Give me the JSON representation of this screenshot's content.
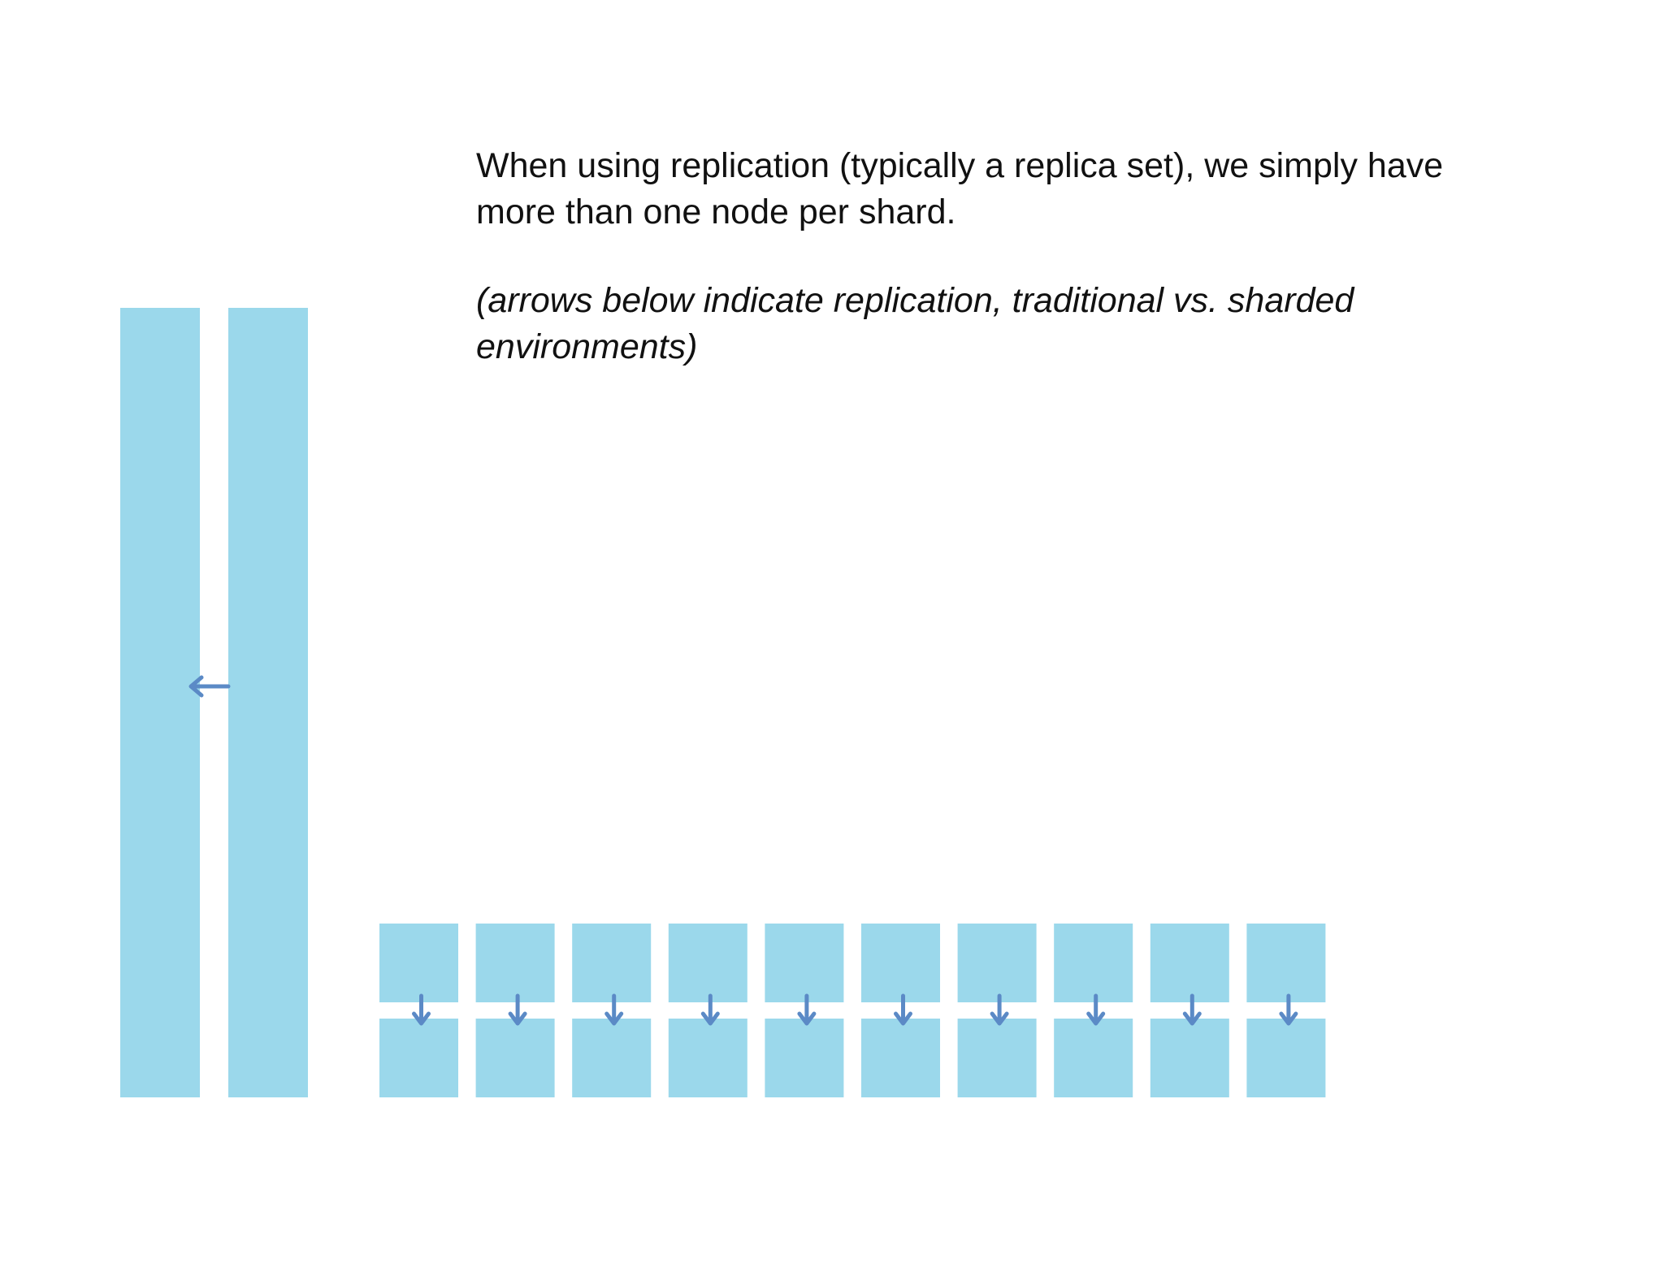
{
  "text": {
    "intro": "When using replication (typically a replica set), we simply have more than one node per shard.",
    "note": "(arrows below indicate replication, traditional vs. sharded environments)"
  },
  "diagram": {
    "traditional": {
      "node_count": 2,
      "arrow_direction": "left"
    },
    "sharded": {
      "shard_count": 10,
      "nodes_per_shard": 2,
      "arrow_direction": "down"
    }
  },
  "colors": {
    "node_fill": "#9bd8eb",
    "arrow": "#5b8ac6",
    "text": "#111111",
    "background": "#ffffff"
  },
  "icons": {
    "traditional_arrow": "arrow-left-icon",
    "shard_arrow": "arrow-down-icon"
  }
}
